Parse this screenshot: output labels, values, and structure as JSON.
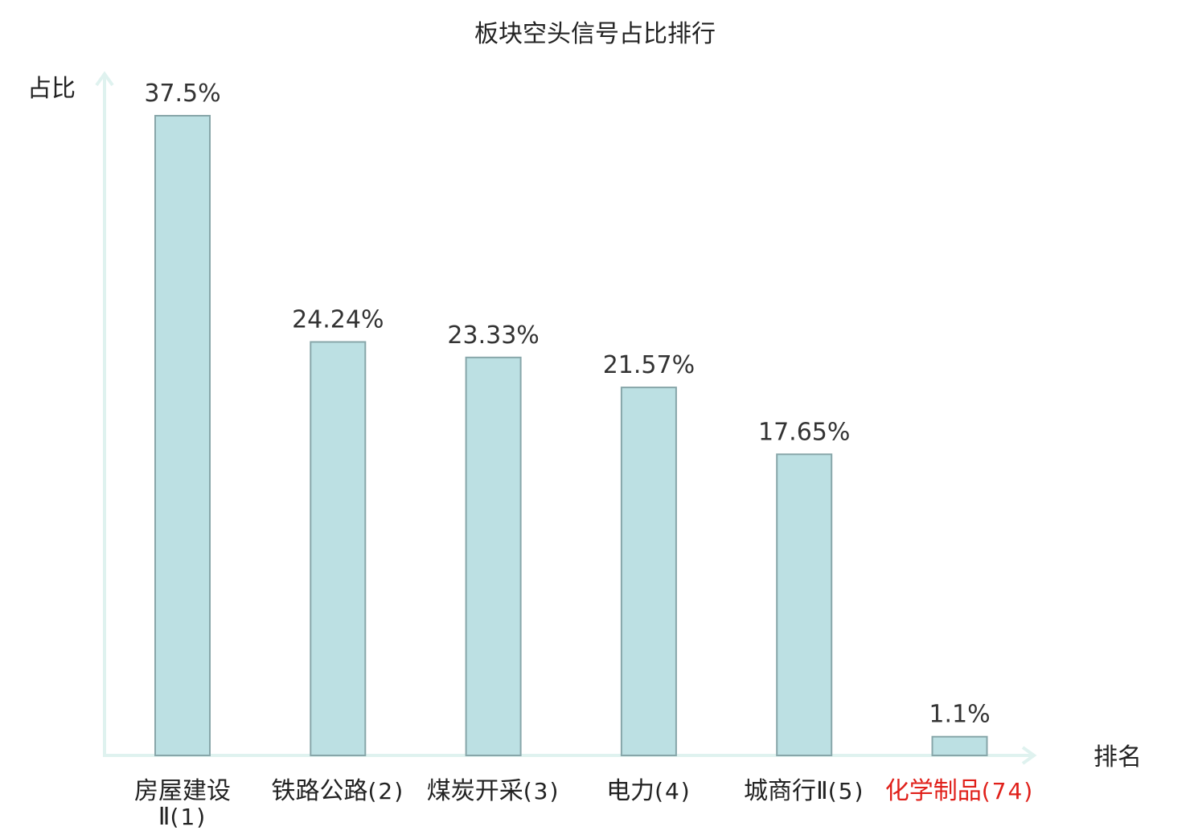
{
  "chart_data": {
    "type": "bar",
    "title": "板块空头信号占比排行",
    "ylabel": "占比",
    "xlabel": "排名",
    "categories": [
      {
        "name": "房屋建设Ⅱ",
        "rank": "(1)"
      },
      {
        "name": "铁路公路",
        "rank": "(2)"
      },
      {
        "name": "煤炭开采",
        "rank": "(3)"
      },
      {
        "name": "电力",
        "rank": "(4)"
      },
      {
        "name": "城商行Ⅱ",
        "rank": "(5)"
      },
      {
        "name": "化学制品",
        "rank": "(74)",
        "highlight": true
      }
    ],
    "values": [
      37.5,
      24.24,
      23.33,
      21.57,
      17.65,
      1.1
    ],
    "value_labels": [
      "37.5%",
      "24.24%",
      "23.33%",
      "21.57%",
      "17.65%",
      "1.1%"
    ],
    "ylim": [
      0,
      37.5
    ],
    "grid": false,
    "legend": "none"
  },
  "colors": {
    "bar_fill": "#bce0e3",
    "bar_stroke": "#87a6a9",
    "axis": "#dff2ef",
    "text": "#222222",
    "value_text": "#333333",
    "highlight": "#e0201a"
  }
}
